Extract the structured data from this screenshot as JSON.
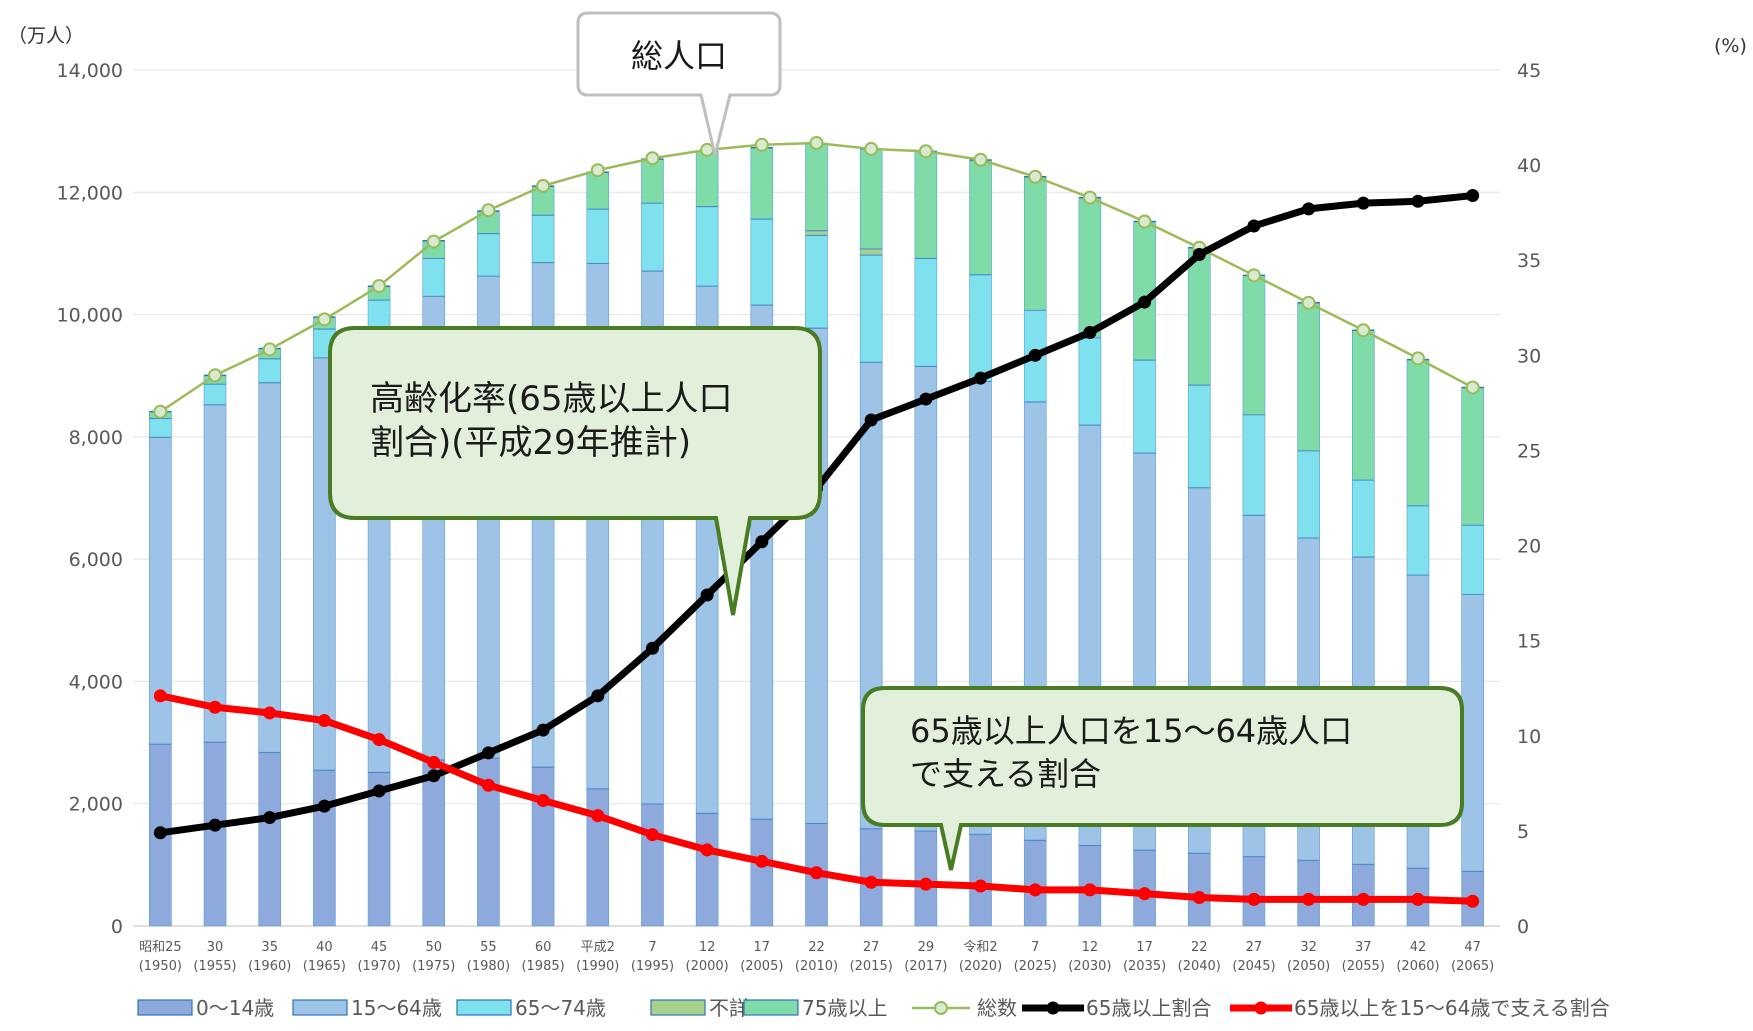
{
  "chart_data": {
    "type": "bar",
    "y_unit_left": "（万人）",
    "y_unit_right": "(%)",
    "ylim_left": [
      0,
      14000
    ],
    "yticks_left": [
      "0",
      "2,000",
      "4,000",
      "6,000",
      "8,000",
      "10,000",
      "12,000",
      "14,000"
    ],
    "ylim_right": [
      0,
      45
    ],
    "yticks_right": [
      "0",
      "5",
      "10",
      "15",
      "20",
      "25",
      "30",
      "35",
      "40",
      "45"
    ],
    "grid": "horizontal",
    "legend_position": "bottom",
    "categories": [
      {
        "era": "昭和25",
        "year": "(1950)"
      },
      {
        "era": "30",
        "year": "(1955)"
      },
      {
        "era": "35",
        "year": "(1960)"
      },
      {
        "era": "40",
        "year": "(1965)"
      },
      {
        "era": "45",
        "year": "(1970)"
      },
      {
        "era": "50",
        "year": "(1975)"
      },
      {
        "era": "55",
        "year": "(1980)"
      },
      {
        "era": "60",
        "year": "(1985)"
      },
      {
        "era": "平成2",
        "year": "(1990)"
      },
      {
        "era": "7",
        "year": "(1995)"
      },
      {
        "era": "12",
        "year": "(2000)"
      },
      {
        "era": "17",
        "year": "(2005)"
      },
      {
        "era": "22",
        "year": "(2010)"
      },
      {
        "era": "27",
        "year": "(2015)"
      },
      {
        "era": "29",
        "year": "(2017)"
      },
      {
        "era": "令和2",
        "year": "(2020)"
      },
      {
        "era": "7",
        "year": "(2025)"
      },
      {
        "era": "12",
        "year": "(2030)"
      },
      {
        "era": "17",
        "year": "(2035)"
      },
      {
        "era": "22",
        "year": "(2040)"
      },
      {
        "era": "27",
        "year": "(2045)"
      },
      {
        "era": "32",
        "year": "(2050)"
      },
      {
        "era": "37",
        "year": "(2055)"
      },
      {
        "era": "42",
        "year": "(2060)"
      },
      {
        "era": "47",
        "year": "(2065)"
      }
    ],
    "stacked_series": [
      {
        "name": "0～14歳",
        "color": "#8EA9DB",
        "values": [
          2979,
          3012,
          2843,
          2553,
          2515,
          2722,
          2751,
          2603,
          2249,
          2001,
          1847,
          1752,
          1680,
          1595,
          1559,
          1503,
          1407,
          1321,
          1246,
          1194,
          1138,
          1077,
          1012,
          951,
          898
        ]
      },
      {
        "name": "15～64歳",
        "color": "#9DC3E6",
        "values": [
          5017,
          5517,
          6047,
          6744,
          7212,
          7581,
          7883,
          8251,
          8590,
          8716,
          8622,
          8409,
          8103,
          7629,
          7596,
          7406,
          7170,
          6875,
          6494,
          5978,
          5584,
          5275,
          5028,
          4793,
          4529
        ]
      },
      {
        "name": "65～74歳",
        "color": "#7FE0EE",
        "values": [
          309,
          338,
          392,
          472,
          516,
          620,
          694,
          775,
          892,
          1109,
          1301,
          1407,
          1517,
          1755,
          1767,
          1747,
          1497,
          1428,
          1522,
          1681,
          1643,
          1424,
          1258,
          1133,
          1133
        ]
      },
      {
        "name": "不詳",
        "color": "#A9D18E",
        "values": [
          0,
          0,
          0,
          0,
          0,
          0,
          0,
          0,
          0,
          0,
          0,
          0,
          76,
          100,
          0,
          0,
          0,
          0,
          0,
          0,
          0,
          0,
          0,
          0,
          0
        ]
      },
      {
        "name": "75歳以上",
        "color": "#7FDCA8",
        "values": [
          107,
          139,
          163,
          189,
          221,
          284,
          366,
          471,
          597,
          717,
          900,
          1160,
          1419,
          1632,
          1748,
          1872,
          2180,
          2288,
          2260,
          2239,
          2277,
          2417,
          2446,
          2387,
          2248
        ]
      }
    ],
    "line_series": [
      {
        "name": "総数",
        "axis": "left",
        "color": "#9BBB59",
        "values": [
          8411,
          9008,
          9430,
          9921,
          10467,
          11194,
          11706,
          12105,
          12361,
          12557,
          12693,
          12777,
          12806,
          12709,
          12671,
          12532,
          12254,
          11913,
          11522,
          11092,
          10642,
          10192,
          9744,
          9284,
          8808
        ]
      },
      {
        "name": "65歳以上割合",
        "axis": "right",
        "color": "#000000",
        "values": [
          4.9,
          5.3,
          5.7,
          6.3,
          7.1,
          7.9,
          9.1,
          10.3,
          12.1,
          14.6,
          17.4,
          20.2,
          23.0,
          26.6,
          27.7,
          28.8,
          30.0,
          31.2,
          32.8,
          35.3,
          36.8,
          37.7,
          38.0,
          38.1,
          38.4
        ]
      },
      {
        "name": "65歳以上を15～64歳で支える割合",
        "axis": "right",
        "color": "#FF0000",
        "values": [
          12.1,
          11.5,
          11.2,
          10.8,
          9.8,
          8.6,
          7.4,
          6.6,
          5.8,
          4.8,
          4.0,
          3.4,
          2.8,
          2.3,
          2.2,
          2.1,
          1.9,
          1.9,
          1.7,
          1.5,
          1.4,
          1.4,
          1.4,
          1.4,
          1.3
        ]
      }
    ],
    "annotations": [
      {
        "name": "total-callout",
        "text_lines": [
          "総人口"
        ]
      },
      {
        "name": "aging-rate-callout",
        "text_lines": [
          "高齢化率(65歳以上人口",
          "割合)(平成29年推計)"
        ]
      },
      {
        "name": "support-ratio-callout",
        "text_lines": [
          "65歳以上人口を15～64歳人口",
          "で支える割合"
        ]
      }
    ],
    "legend": [
      "0～14歳",
      "15～64歳",
      "65～74歳",
      "不詳",
      "75歳以上",
      "総数",
      "65歳以上割合",
      "65歳以上を15～64歳で支える割合"
    ]
  }
}
